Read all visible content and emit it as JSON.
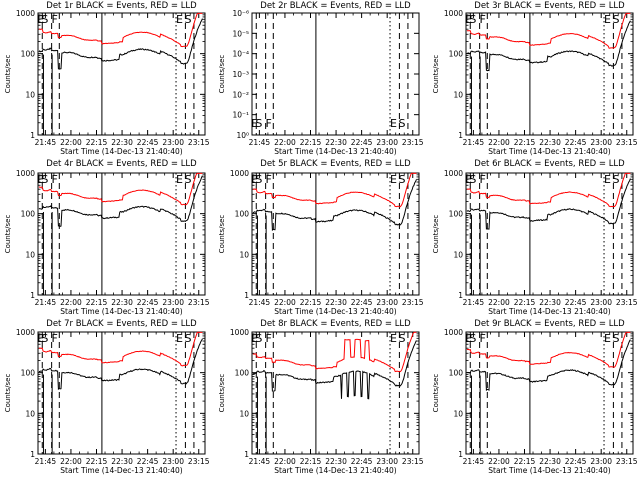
{
  "common": {
    "ylabel": "Counts/sec",
    "xlabel": "Start Time (14-Dec-13 21:40:40)",
    "x_ticks": [
      "21:45",
      "22:00",
      "22:15",
      "22:30",
      "22:45",
      "23:00",
      "23:15"
    ],
    "x_tick_minutes": [
      4.33,
      19.33,
      34.33,
      49.33,
      64.33,
      79.33,
      94.33
    ],
    "x_range_minutes": [
      0,
      98
    ],
    "marker_lines": [
      {
        "minute": 2.5,
        "style": "dashed"
      },
      {
        "minute": 8.0,
        "style": "dashed"
      },
      {
        "minute": 12.5,
        "style": "dashed"
      },
      {
        "minute": 37.5,
        "style": "solid"
      },
      {
        "minute": 81.0,
        "style": "dotted"
      },
      {
        "minute": 86.5,
        "style": "dashed"
      },
      {
        "minute": 91.5,
        "style": "dashed"
      }
    ],
    "marker_labels": [
      {
        "text": "E",
        "minute": 1.5
      },
      {
        "text": "S",
        "minute": 4.0
      },
      {
        "text": "F",
        "minute": 9.8
      },
      {
        "text": "E",
        "minute": 83.0
      },
      {
        "text": "S",
        "minute": 88.0
      }
    ],
    "series": [
      {
        "color": "#000000"
      },
      {
        "color": "#ff0000"
      }
    ]
  },
  "chart_data": [
    {
      "type": "line",
      "title": "Det 1r BLACK = Events, RED = LLD",
      "ylim": [
        1,
        1000
      ],
      "yscale": "log",
      "yticks": [
        "1",
        "10",
        "100",
        "1000"
      ],
      "ytick_values": [
        1,
        10,
        100,
        1000
      ],
      "labels_at_bottom": false,
      "series": [
        {
          "profile": "standard",
          "base": 95
        },
        {
          "profile": "standard",
          "base": 250
        }
      ]
    },
    {
      "type": "line",
      "title": "Det 2r BLACK = Events, RED = LLD",
      "ylim": [
        1,
        1e-06
      ],
      "yscale": "log",
      "yticks": [
        "10⁰",
        "10⁻¹",
        "10⁻²",
        "10⁻³",
        "10⁻⁴",
        "10⁻⁵",
        "10⁻⁶"
      ],
      "ytick_values": [
        1,
        0.1,
        0.01,
        0.001,
        0.0001,
        1e-05,
        1e-06
      ],
      "labels_at_bottom": true,
      "series": []
    },
    {
      "type": "line",
      "title": "Det 3r BLACK = Events, RED = LLD",
      "ylim": [
        1,
        1000
      ],
      "yscale": "log",
      "yticks": [
        "1",
        "10",
        "100",
        "1000"
      ],
      "ytick_values": [
        1,
        10,
        100,
        1000
      ],
      "labels_at_bottom": false,
      "series": [
        {
          "profile": "standard",
          "base": 85
        },
        {
          "profile": "standard",
          "base": 230
        }
      ]
    },
    {
      "type": "line",
      "title": "Det 4r BLACK = Events, RED = LLD",
      "ylim": [
        1,
        1000
      ],
      "yscale": "log",
      "yticks": [
        "1",
        "10",
        "100",
        "1000"
      ],
      "ytick_values": [
        1,
        10,
        100,
        1000
      ],
      "labels_at_bottom": false,
      "series": [
        {
          "profile": "standard",
          "base": 110
        },
        {
          "profile": "standard",
          "base": 280
        }
      ]
    },
    {
      "type": "line",
      "title": "Det 5r BLACK = Events, RED = LLD",
      "ylim": [
        1,
        1000
      ],
      "yscale": "log",
      "yticks": [
        "1",
        "10",
        "100",
        "1000"
      ],
      "ytick_values": [
        1,
        10,
        100,
        1000
      ],
      "labels_at_bottom": false,
      "series": [
        {
          "profile": "standard",
          "base": 90
        },
        {
          "profile": "standard",
          "base": 250
        }
      ]
    },
    {
      "type": "line",
      "title": "Det 6r BLACK = Events, RED = LLD",
      "ylim": [
        1,
        1000
      ],
      "yscale": "log",
      "yticks": [
        "1",
        "10",
        "100",
        "1000"
      ],
      "ytick_values": [
        1,
        10,
        100,
        1000
      ],
      "labels_at_bottom": false,
      "series": [
        {
          "profile": "standard",
          "base": 95
        },
        {
          "profile": "standard",
          "base": 250
        }
      ]
    },
    {
      "type": "line",
      "title": "Det 7r BLACK = Events, RED = LLD",
      "ylim": [
        1,
        1000
      ],
      "yscale": "log",
      "yticks": [
        "1",
        "10",
        "100",
        "1000"
      ],
      "ytick_values": [
        1,
        10,
        100,
        1000
      ],
      "labels_at_bottom": false,
      "series": [
        {
          "profile": "standard",
          "base": 90
        },
        {
          "profile": "standard",
          "base": 250
        }
      ]
    },
    {
      "type": "line",
      "title": "Det 8r BLACK = Events, RED = LLD",
      "ylim": [
        1,
        1000
      ],
      "yscale": "log",
      "yticks": [
        "1",
        "10",
        "100",
        "1000"
      ],
      "ytick_values": [
        1,
        10,
        100,
        1000
      ],
      "labels_at_bottom": false,
      "series": [
        {
          "profile": "det8_black",
          "base": 80
        },
        {
          "profile": "det8_red",
          "base": 180
        }
      ]
    },
    {
      "type": "line",
      "title": "Det 9r BLACK = Events, RED = LLD",
      "ylim": [
        1,
        1000
      ],
      "yscale": "log",
      "yticks": [
        "1",
        "10",
        "100",
        "1000"
      ],
      "ytick_values": [
        1,
        10,
        100,
        1000
      ],
      "labels_at_bottom": false,
      "series": [
        {
          "profile": "standard",
          "base": 85
        },
        {
          "profile": "standard",
          "base": 230
        }
      ]
    }
  ]
}
